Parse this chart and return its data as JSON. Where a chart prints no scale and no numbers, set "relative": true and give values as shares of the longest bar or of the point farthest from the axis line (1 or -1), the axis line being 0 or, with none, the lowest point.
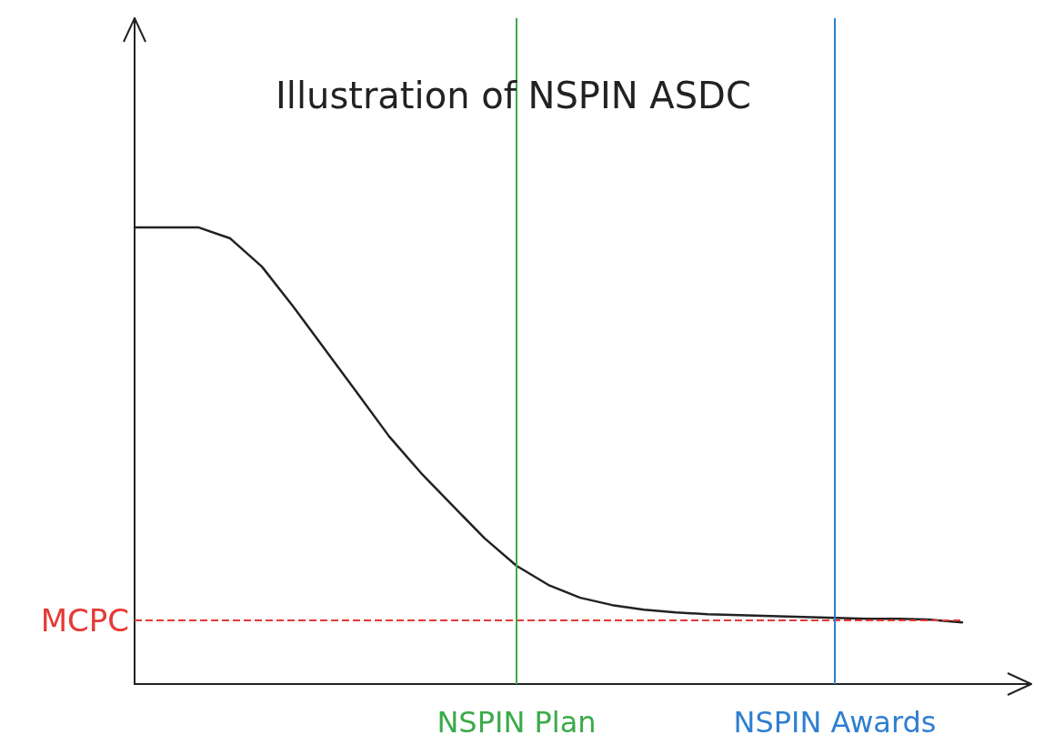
{
  "chart_data": {
    "type": "line",
    "title": "Illustration of NSPIN ASDC",
    "relative": true,
    "categories": [
      null,
      null,
      null,
      null,
      null,
      null,
      null,
      null,
      null,
      null,
      null,
      null,
      "NSPIN Plan",
      null,
      null,
      null,
      null,
      null,
      null,
      null,
      null,
      null,
      "NSPIN Awards",
      null,
      null,
      null,
      null
    ],
    "series": [
      {
        "color": "#222222",
        "values": [
          1,
          1,
          1,
          0.976,
          0.914,
          0.825,
          0.731,
          0.637,
          0.542,
          0.462,
          0.39,
          0.319,
          0.259,
          0.217,
          0.189,
          0.173,
          0.163,
          0.157,
          0.153,
          0.151,
          0.149,
          0.147,
          0.145,
          0.143,
          0.143,
          0.141,
          0.135
        ]
      }
    ],
    "ref_lines": [
      {
        "axis": "y",
        "value": 0.141,
        "label": "MCPC",
        "color": "#e53935",
        "line_style": "dashed"
      },
      {
        "axis": "x",
        "value": "NSPIN Plan",
        "color": "#3aaa4a",
        "line_style": "solid"
      },
      {
        "axis": "x",
        "value": "NSPIN Awards",
        "color": "#2f7fd0",
        "line_style": "solid"
      }
    ],
    "grid": false,
    "marker": "none",
    "line_style": "solid"
  }
}
